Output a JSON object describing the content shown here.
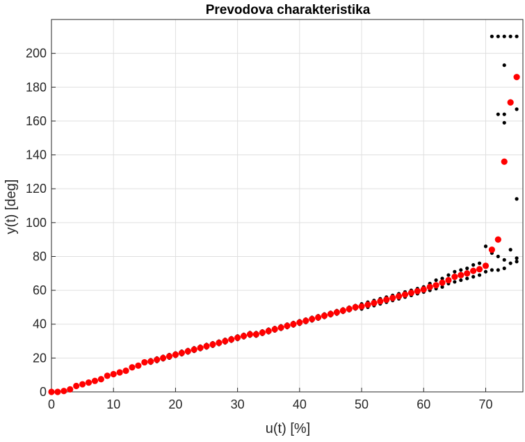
{
  "chart_data": {
    "type": "scatter",
    "title": "Prevodova charakteristika",
    "xlabel": "u(t) [%]",
    "ylabel": "y(t) [deg]",
    "xlim": [
      0,
      76
    ],
    "ylim": [
      0,
      220
    ],
    "xticks": [
      0,
      10,
      20,
      30,
      40,
      50,
      60,
      70
    ],
    "yticks": [
      0,
      20,
      40,
      60,
      80,
      100,
      120,
      140,
      160,
      180,
      200
    ],
    "grid": true,
    "series": [
      {
        "color": "#000000",
        "marker": "small-dot",
        "points": [
          [
            0,
            0
          ],
          [
            1,
            0
          ],
          [
            2,
            0
          ],
          [
            2,
            0.5
          ],
          [
            3,
            1
          ],
          [
            3,
            2
          ],
          [
            4,
            3
          ],
          [
            4,
            4
          ],
          [
            5,
            4
          ],
          [
            5,
            5
          ],
          [
            6,
            5
          ],
          [
            6,
            6
          ],
          [
            7,
            6
          ],
          [
            7,
            7
          ],
          [
            8,
            7
          ],
          [
            8,
            8
          ],
          [
            9,
            9
          ],
          [
            9,
            10
          ],
          [
            10,
            10
          ],
          [
            10,
            11
          ],
          [
            11,
            11
          ],
          [
            11,
            12
          ],
          [
            12,
            12
          ],
          [
            12,
            13
          ],
          [
            13,
            14
          ],
          [
            13,
            15
          ],
          [
            14,
            15
          ],
          [
            14,
            16
          ],
          [
            15,
            17
          ],
          [
            15,
            18
          ],
          [
            16,
            17
          ],
          [
            16,
            19
          ],
          [
            17,
            18
          ],
          [
            17,
            20
          ],
          [
            18,
            19
          ],
          [
            18,
            21
          ],
          [
            19,
            20
          ],
          [
            19,
            22
          ],
          [
            20,
            21
          ],
          [
            20,
            23
          ],
          [
            21,
            22
          ],
          [
            21,
            24
          ],
          [
            22,
            23
          ],
          [
            22,
            25
          ],
          [
            23,
            24
          ],
          [
            23,
            26
          ],
          [
            24,
            25
          ],
          [
            24,
            27
          ],
          [
            25,
            26
          ],
          [
            25,
            28
          ],
          [
            26,
            27
          ],
          [
            26,
            29
          ],
          [
            27,
            28
          ],
          [
            27,
            30
          ],
          [
            28,
            29
          ],
          [
            28,
            31
          ],
          [
            29,
            30
          ],
          [
            29,
            32
          ],
          [
            30,
            31
          ],
          [
            30,
            33
          ],
          [
            31,
            32
          ],
          [
            31,
            34
          ],
          [
            32,
            33
          ],
          [
            32,
            35
          ],
          [
            33,
            33
          ],
          [
            33,
            35
          ],
          [
            34,
            34
          ],
          [
            34,
            36
          ],
          [
            35,
            35
          ],
          [
            35,
            37
          ],
          [
            36,
            36
          ],
          [
            36,
            38
          ],
          [
            37,
            37
          ],
          [
            37,
            39
          ],
          [
            38,
            38
          ],
          [
            38,
            40
          ],
          [
            39,
            39
          ],
          [
            39,
            41
          ],
          [
            40,
            40
          ],
          [
            40,
            42
          ],
          [
            41,
            41
          ],
          [
            41,
            43
          ],
          [
            42,
            42
          ],
          [
            42,
            44
          ],
          [
            43,
            43
          ],
          [
            43,
            45
          ],
          [
            44,
            44
          ],
          [
            44,
            46
          ],
          [
            45,
            45
          ],
          [
            45,
            47
          ],
          [
            46,
            46
          ],
          [
            46,
            48
          ],
          [
            47,
            47
          ],
          [
            47,
            49
          ],
          [
            48,
            48
          ],
          [
            48,
            50
          ],
          [
            49,
            49
          ],
          [
            49,
            51
          ],
          [
            50,
            49
          ],
          [
            50,
            52
          ],
          [
            51,
            50
          ],
          [
            51,
            53
          ],
          [
            52,
            51
          ],
          [
            52,
            54
          ],
          [
            53,
            52
          ],
          [
            53,
            55
          ],
          [
            54,
            53
          ],
          [
            54,
            56
          ],
          [
            55,
            54
          ],
          [
            55,
            57
          ],
          [
            56,
            55
          ],
          [
            56,
            58
          ],
          [
            57,
            56
          ],
          [
            57,
            59
          ],
          [
            58,
            57
          ],
          [
            58,
            60
          ],
          [
            59,
            58
          ],
          [
            59,
            61
          ],
          [
            60,
            59
          ],
          [
            60,
            62
          ],
          [
            61,
            60
          ],
          [
            61,
            64
          ],
          [
            62,
            61
          ],
          [
            62,
            66
          ],
          [
            63,
            62
          ],
          [
            63,
            67
          ],
          [
            64,
            64
          ],
          [
            64,
            69
          ],
          [
            65,
            65
          ],
          [
            65,
            71
          ],
          [
            66,
            66
          ],
          [
            66,
            72
          ],
          [
            67,
            67
          ],
          [
            67,
            73
          ],
          [
            68,
            68
          ],
          [
            68,
            75
          ],
          [
            69,
            69
          ],
          [
            69,
            76
          ],
          [
            70,
            71
          ],
          [
            70,
            86
          ],
          [
            71,
            72
          ],
          [
            71,
            82
          ],
          [
            72,
            72
          ],
          [
            72,
            80
          ],
          [
            73,
            73
          ],
          [
            73,
            78
          ],
          [
            74,
            76
          ],
          [
            74,
            84
          ],
          [
            75,
            77
          ],
          [
            75,
            79
          ],
          [
            71,
            210
          ],
          [
            72,
            210
          ],
          [
            73,
            210
          ],
          [
            74,
            210
          ],
          [
            75,
            210
          ],
          [
            73,
            193
          ],
          [
            72,
            164
          ],
          [
            73,
            164
          ],
          [
            73,
            159
          ],
          [
            75,
            167
          ],
          [
            75,
            114
          ]
        ]
      },
      {
        "color": "#ff0000",
        "marker": "large-dot",
        "points": [
          [
            0,
            0
          ],
          [
            1,
            0
          ],
          [
            2,
            0.5
          ],
          [
            3,
            1.5
          ],
          [
            4,
            3.5
          ],
          [
            5,
            4.5
          ],
          [
            6,
            5.5
          ],
          [
            7,
            6.5
          ],
          [
            8,
            7.5
          ],
          [
            9,
            9.5
          ],
          [
            10,
            10.5
          ],
          [
            11,
            11.5
          ],
          [
            12,
            12.5
          ],
          [
            13,
            14.5
          ],
          [
            14,
            15.5
          ],
          [
            15,
            17.5
          ],
          [
            16,
            18
          ],
          [
            17,
            19
          ],
          [
            18,
            20
          ],
          [
            19,
            21
          ],
          [
            20,
            22
          ],
          [
            21,
            23
          ],
          [
            22,
            24
          ],
          [
            23,
            25
          ],
          [
            24,
            26
          ],
          [
            25,
            27
          ],
          [
            26,
            28
          ],
          [
            27,
            29
          ],
          [
            28,
            30
          ],
          [
            29,
            31
          ],
          [
            30,
            32
          ],
          [
            31,
            33
          ],
          [
            32,
            34
          ],
          [
            33,
            34
          ],
          [
            34,
            35
          ],
          [
            35,
            36
          ],
          [
            36,
            37
          ],
          [
            37,
            38
          ],
          [
            38,
            39
          ],
          [
            39,
            40
          ],
          [
            40,
            41
          ],
          [
            41,
            42
          ],
          [
            42,
            43
          ],
          [
            43,
            44
          ],
          [
            44,
            45
          ],
          [
            45,
            46
          ],
          [
            46,
            47
          ],
          [
            47,
            48
          ],
          [
            48,
            49
          ],
          [
            49,
            50
          ],
          [
            50,
            50.5
          ],
          [
            51,
            51.5
          ],
          [
            52,
            52.5
          ],
          [
            53,
            53.5
          ],
          [
            54,
            54.5
          ],
          [
            55,
            55.5
          ],
          [
            56,
            56.5
          ],
          [
            57,
            57.5
          ],
          [
            58,
            58.5
          ],
          [
            59,
            59.5
          ],
          [
            60,
            60.5
          ],
          [
            61,
            62
          ],
          [
            62,
            63
          ],
          [
            63,
            64.5
          ],
          [
            64,
            66
          ],
          [
            65,
            68
          ],
          [
            66,
            69
          ],
          [
            67,
            70
          ],
          [
            68,
            71.5
          ],
          [
            69,
            72.5
          ],
          [
            70,
            74.5
          ],
          [
            71,
            84
          ],
          [
            72,
            90
          ],
          [
            73,
            136
          ],
          [
            74,
            171
          ],
          [
            75,
            186
          ]
        ]
      }
    ]
  }
}
